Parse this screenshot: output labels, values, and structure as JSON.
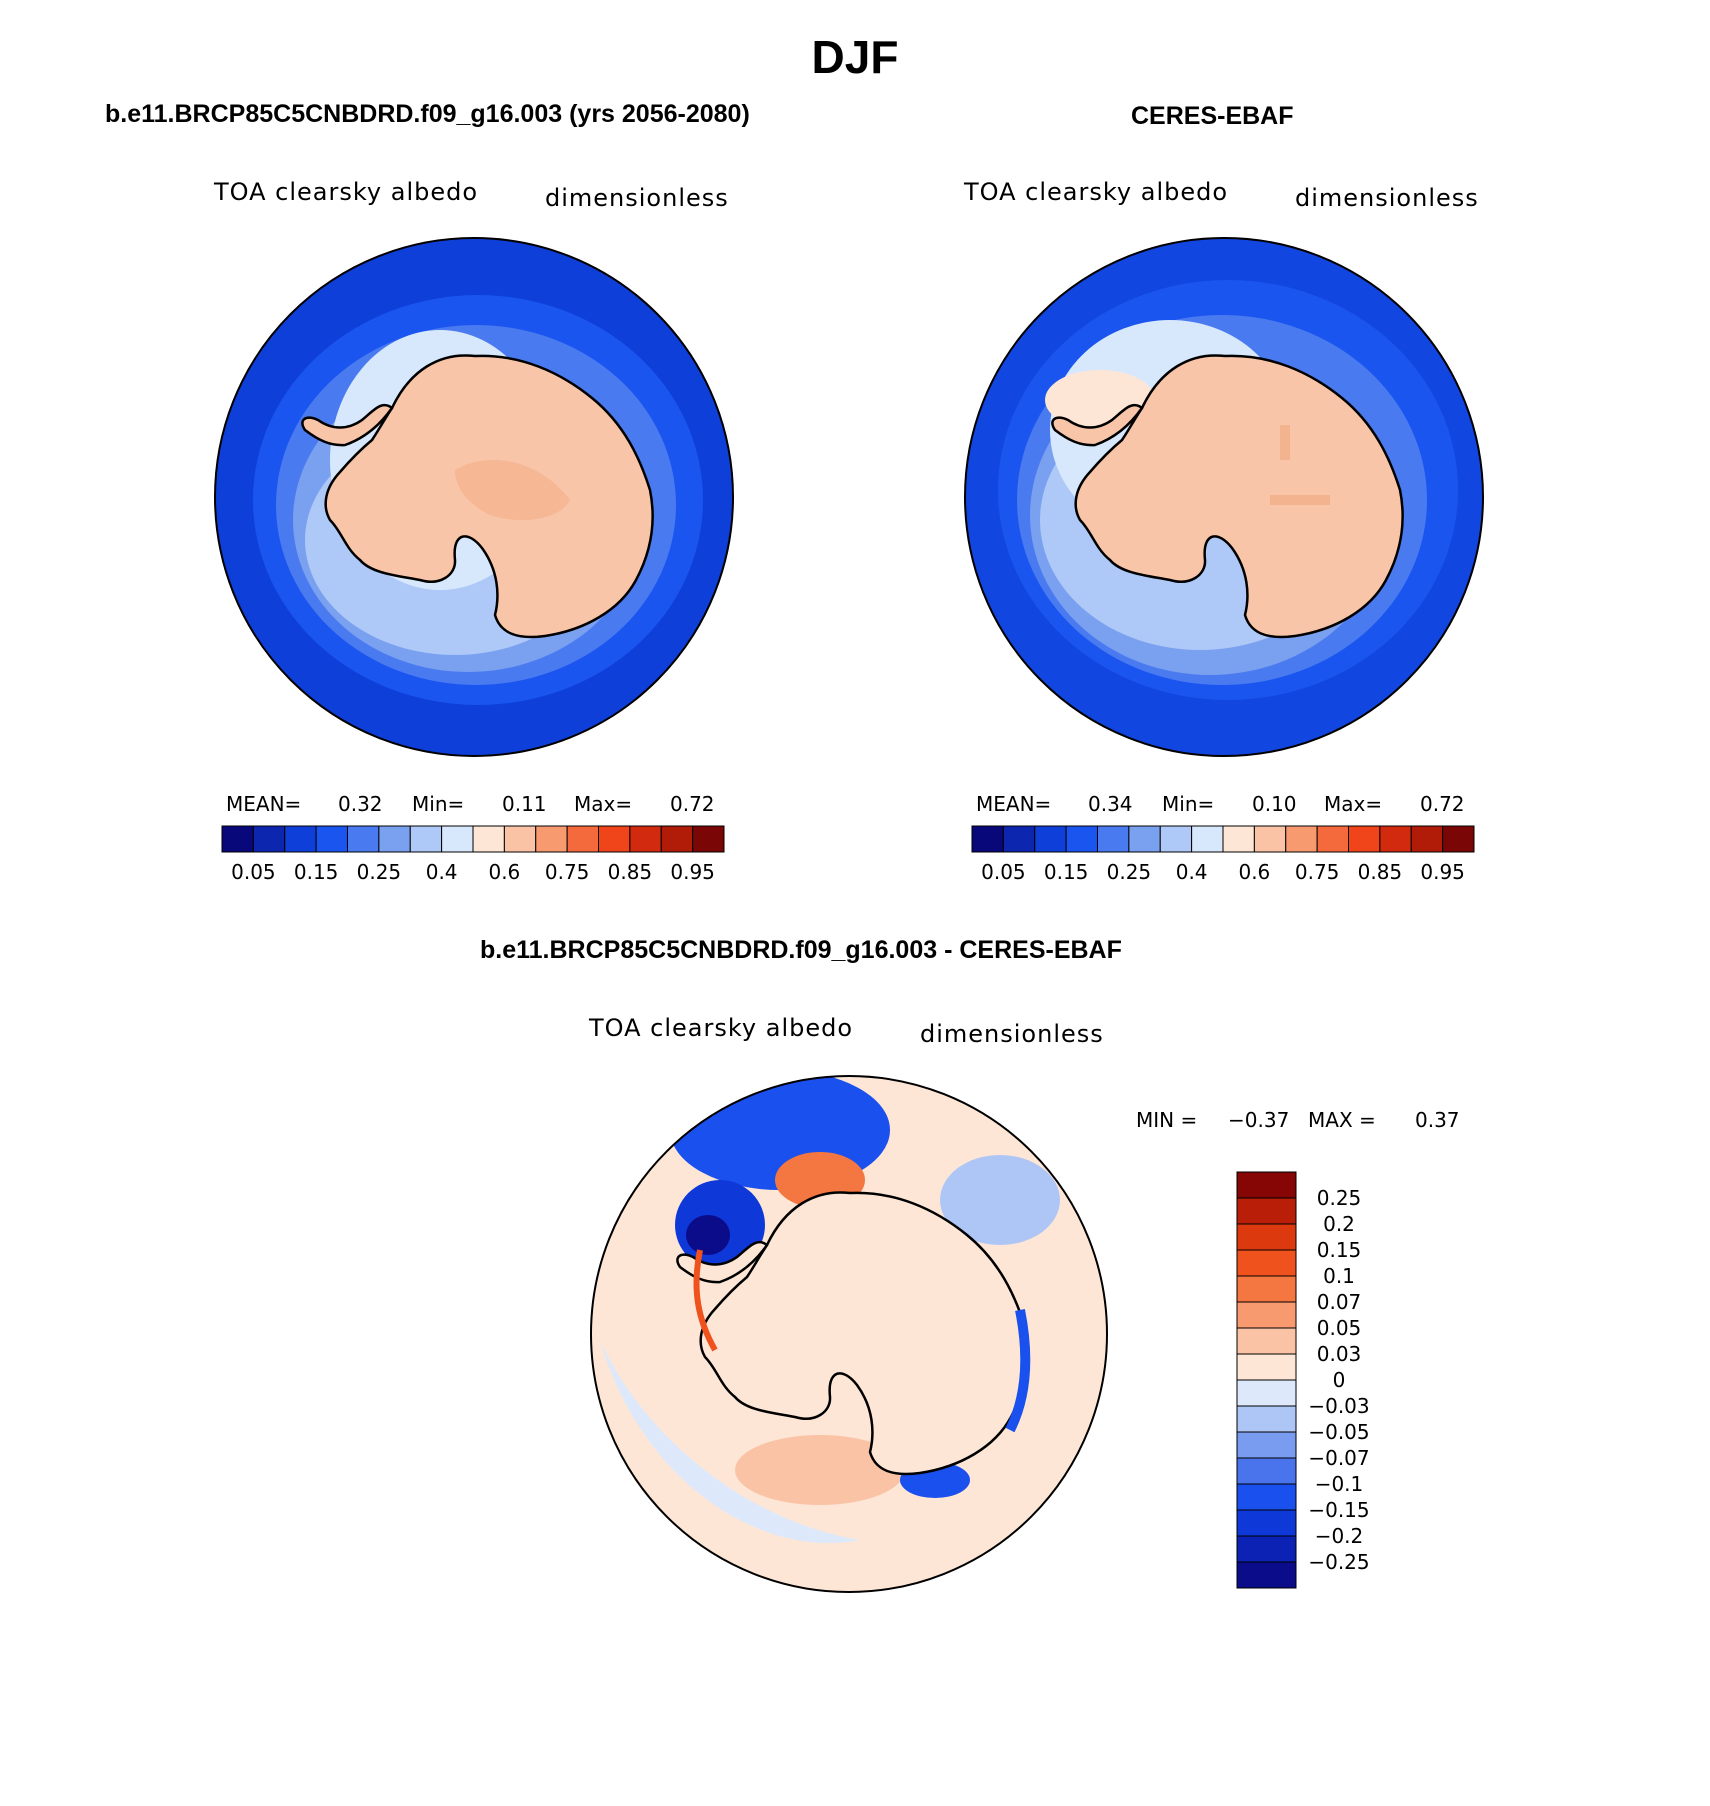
{
  "page": {
    "title": "DJF"
  },
  "panels": [
    {
      "id": "model",
      "heading": "b.e11.BRCP85C5CNBDRD.f09_g16.003 (yrs 2056-2080)",
      "variable": "TOA clearsky albedo",
      "units": "dimensionless",
      "stats": {
        "mean_label": "MEAN=",
        "mean": "0.32",
        "min_label": "Min=",
        "min": "0.11",
        "max_label": "Max=",
        "max": "0.72"
      },
      "ocean_color": "#0f3fd9"
    },
    {
      "id": "obs",
      "heading": "CERES-EBAF",
      "variable": "TOA clearsky albedo",
      "units": "dimensionless",
      "stats": {
        "mean_label": "MEAN=",
        "mean": "0.34",
        "min_label": "Min=",
        "min": "0.10",
        "max_label": "Max=",
        "max": "0.72"
      },
      "ocean_color": "#1246e0"
    },
    {
      "id": "diff",
      "heading": "b.e11.BRCP85C5CNBDRD.f09_g16.003 - CERES-EBAF",
      "variable": "TOA clearsky albedo",
      "units": "dimensionless",
      "stats": {
        "min_label": "MIN =",
        "min": "−0.37",
        "max_label": "MAX =",
        "max": "0.37"
      },
      "ocean_color": "#fde6d6"
    }
  ],
  "colorbar_abs": {
    "colors": [
      "#08087a",
      "#0c26b0",
      "#0f3fd9",
      "#1a55f0",
      "#4a7af0",
      "#7aa0f0",
      "#aec8f8",
      "#d8e8fc",
      "#fde6d6",
      "#fbc3a6",
      "#f79a70",
      "#f46a3c",
      "#f0441a",
      "#d22a0e",
      "#b01c08",
      "#7a0606"
    ],
    "tick_labels": [
      "0.05",
      "0.15",
      "0.25",
      "0.4",
      "0.6",
      "0.75",
      "0.85",
      "0.95"
    ]
  },
  "colorbar_diff": {
    "colors": [
      "#0a0c8a",
      "#0c22b4",
      "#0f38d8",
      "#1a50ee",
      "#4a74ec",
      "#7a9cf0",
      "#aec6f6",
      "#dde9fb",
      "#fde6d6",
      "#fbc3a6",
      "#f79a70",
      "#f47640",
      "#f0521e",
      "#dc3a0e",
      "#b81e08",
      "#860606"
    ],
    "tick_labels": [
      "0.25",
      "0.2",
      "0.15",
      "0.1",
      "0.07",
      "0.05",
      "0.03",
      "0",
      "−0.03",
      "−0.05",
      "−0.07",
      "−0.1",
      "−0.15",
      "−0.2",
      "−0.25"
    ]
  },
  "land_color": "#f9c5a8"
}
